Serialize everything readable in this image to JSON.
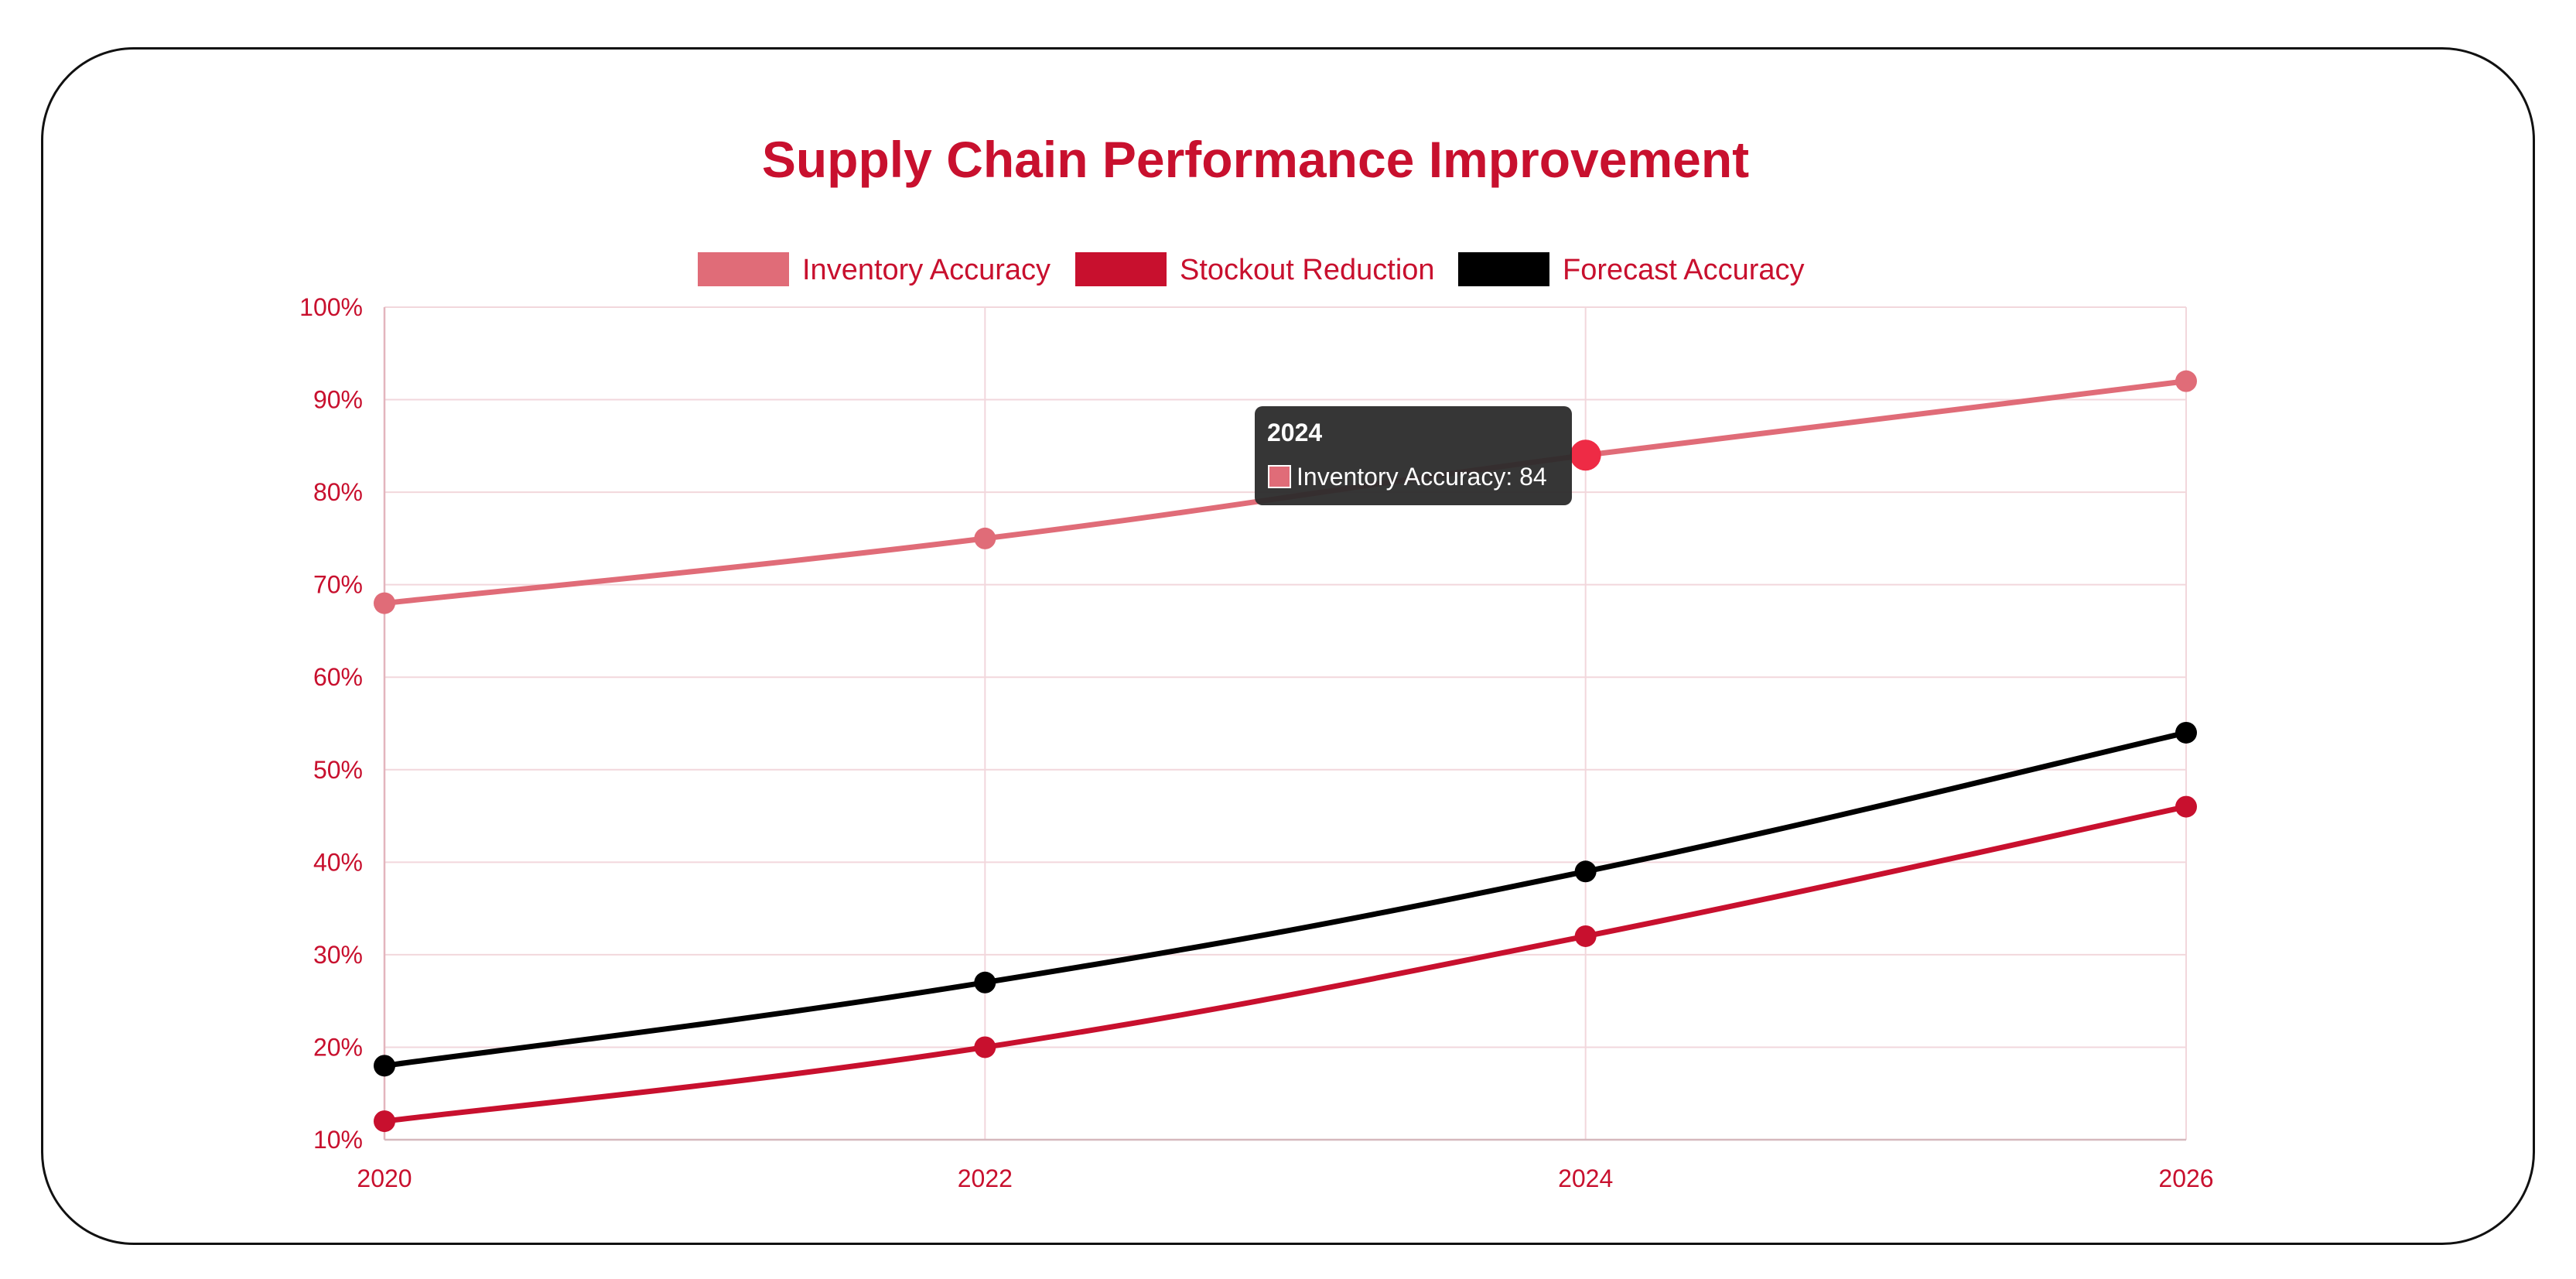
{
  "colors": {
    "title": "#c8102e",
    "axis_text": "#c8102e",
    "grid": "#f2d7dc",
    "tooltip_bg": "#2b2b2b",
    "tooltip_text": "#ffffff"
  },
  "tooltip": {
    "title": "2024",
    "series": "Inventory Accuracy",
    "value": 84,
    "label": "Inventory Accuracy: 84"
  },
  "chart_data": {
    "type": "line",
    "title": "Supply Chain Performance Improvement",
    "xlabel": "",
    "ylabel": "",
    "x": [
      2020,
      2022,
      2024,
      2026
    ],
    "x_tick_labels": [
      "2020",
      "2022",
      "2024",
      "2026"
    ],
    "ylim": [
      10,
      100
    ],
    "y_ticks": [
      10,
      20,
      30,
      40,
      50,
      60,
      70,
      80,
      90,
      100
    ],
    "y_tick_labels": [
      "10%",
      "20%",
      "30%",
      "40%",
      "50%",
      "60%",
      "70%",
      "80%",
      "90%",
      "100%"
    ],
    "grid": true,
    "legend": "top-center",
    "series": [
      {
        "name": "Inventory Accuracy",
        "color": "#e06c78",
        "values": [
          68,
          75,
          84,
          92
        ]
      },
      {
        "name": "Stockout Reduction",
        "color": "#c8102e",
        "values": [
          12,
          20,
          32,
          46
        ]
      },
      {
        "name": "Forecast Accuracy",
        "color": "#000000",
        "values": [
          18,
          27,
          39,
          54
        ]
      }
    ]
  }
}
